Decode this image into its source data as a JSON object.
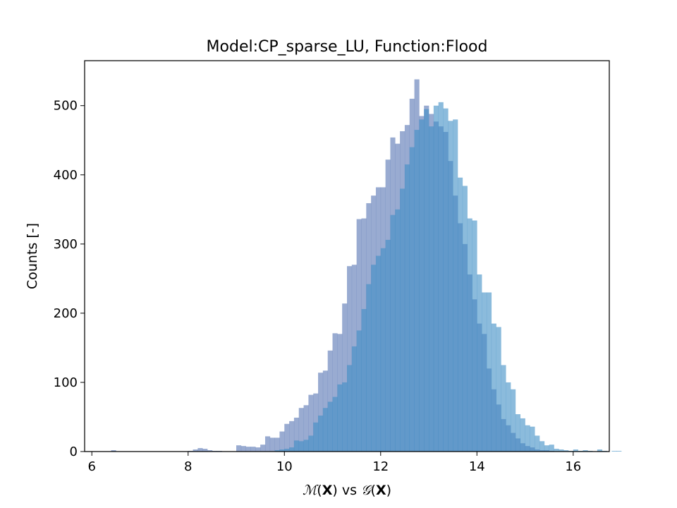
{
  "chart_data": {
    "type": "histogram",
    "title": "Model:CP_sparse_LU, Function:Flood",
    "ylabel": "Counts [-]",
    "xlabel": {
      "M": "ℳ",
      "open1": "(",
      "X1": "X",
      "close1": ")",
      "vs": " vs ",
      "G": "𝒢",
      "open2": "(",
      "X2": "X",
      "close2": ")"
    },
    "xlim": [
      5.85,
      16.75
    ],
    "ylim": [
      0,
      565
    ],
    "xticks": [
      6,
      8,
      10,
      12,
      14,
      16
    ],
    "yticks": [
      0,
      100,
      200,
      300,
      400,
      500
    ],
    "grid": false,
    "series": [
      {
        "color": "#5b77b5",
        "opacity": 0.62,
        "bin_start": 6.4,
        "bin_width": 0.1,
        "counts": [
          2,
          0,
          0,
          0,
          0,
          0,
          0,
          0,
          0,
          0,
          0,
          0,
          0,
          0,
          0,
          0,
          1,
          3,
          5,
          4,
          2,
          1,
          1,
          0,
          0,
          0,
          9,
          8,
          7,
          7,
          6,
          10,
          22,
          20,
          20,
          29,
          40,
          44,
          49,
          63,
          67,
          82,
          84,
          114,
          117,
          146,
          171,
          170,
          214,
          268,
          270,
          336,
          337,
          359,
          370,
          382,
          382,
          422,
          454,
          445,
          463,
          472,
          510,
          538,
          485,
          500,
          488,
          477,
          470,
          462,
          420,
          370,
          330,
          300,
          256,
          220,
          185,
          170,
          120,
          90,
          68,
          47,
          38,
          27,
          19,
          12,
          8,
          6,
          3,
          2,
          2,
          1
        ]
      },
      {
        "color": "#3d8dc4",
        "opacity": 0.6,
        "bin_start": 6.4,
        "bin_width": 0.1,
        "counts": [
          0,
          0,
          0,
          0,
          0,
          0,
          0,
          0,
          0,
          0,
          0,
          0,
          0,
          0,
          0,
          0,
          0,
          0,
          0,
          0,
          0,
          0,
          0,
          0,
          0,
          0,
          0,
          0,
          0,
          0,
          0,
          0,
          0,
          0,
          2,
          3,
          4,
          6,
          16,
          15,
          17,
          23,
          42,
          52,
          63,
          72,
          79,
          97,
          100,
          125,
          152,
          175,
          206,
          242,
          270,
          283,
          294,
          306,
          342,
          350,
          380,
          415,
          440,
          465,
          480,
          495,
          470,
          500,
          505,
          496,
          478,
          480,
          396,
          384,
          337,
          334,
          256,
          230,
          230,
          185,
          180,
          125,
          100,
          90,
          54,
          48,
          38,
          36,
          23,
          15,
          9,
          10,
          4,
          3,
          2,
          1,
          3,
          1,
          2,
          1,
          0,
          3,
          1,
          0,
          1,
          1,
          0,
          0,
          0,
          0
        ]
      }
    ]
  }
}
